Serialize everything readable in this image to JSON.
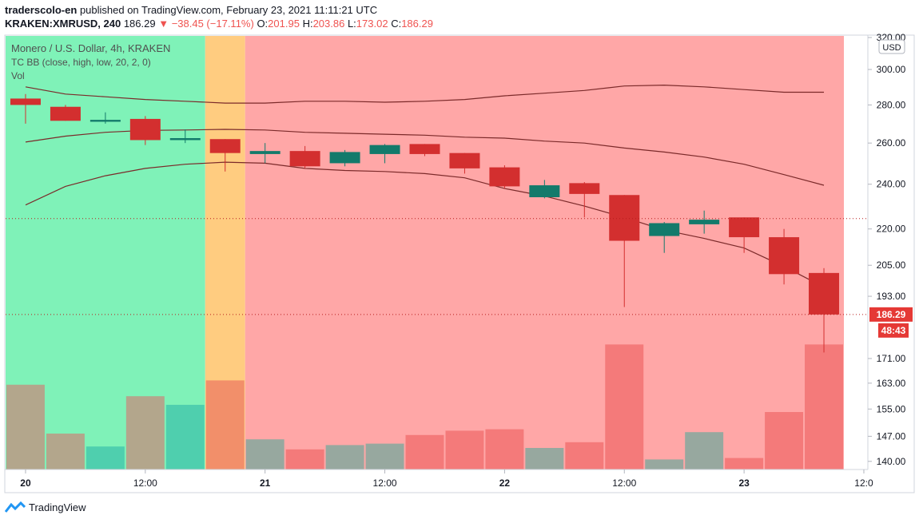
{
  "header": {
    "publisher": "traderscolo-en",
    "published_text": "published on TradingView.com, February 23, 2021 11:11:21 UTC",
    "symbol": "KRAKEN:XMRUSD, 240",
    "last_price": "186.29",
    "change": "▼ −38.45 (−17.11%)",
    "o_label": "O:",
    "o_value": "201.95",
    "h_label": "H:",
    "h_value": "203.86",
    "l_label": "L:",
    "l_value": "173.02",
    "c_label": "C:",
    "c_value": "186.29"
  },
  "legend": {
    "title": "Monero / U.S. Dollar, 4h, KRAKEN",
    "indicator": "TC BB (close, high, low, 20, 2, 0)",
    "volume": "Vol"
  },
  "footer": {
    "brand": "TradingView",
    "logo_icon": "tradingview-logo-icon"
  },
  "colors": {
    "up": "#26a69a",
    "down": "#ef5350",
    "candle_up": "#137a6b",
    "candle_down": "#d32f2f",
    "zone_green": "#7ff2b8",
    "zone_orange": "#ffcc80",
    "zone_red": "#ffa7a7",
    "bb_line": "#7b2a2a",
    "price_line": "#b71c1c"
  },
  "chart_data": {
    "type": "candlestick",
    "title": "Monero / U.S. Dollar, 4h, KRAKEN",
    "currency": "USD",
    "price_scale": "log",
    "y_ticks": [
      "320.00",
      "300.00",
      "280.00",
      "260.00",
      "240.00",
      "220.00",
      "205.00",
      "193.00",
      "186.29",
      "171.00",
      "163.00",
      "155.00",
      "147.00",
      "140.00"
    ],
    "x_tick_labels": [
      "20",
      "12:00",
      "21",
      "12:00",
      "22",
      "12:00",
      "23",
      "12:0"
    ],
    "last_price_label": "186.29",
    "countdown_label": "48:43",
    "zones": [
      {
        "name": "green",
        "start": 0,
        "end": 4
      },
      {
        "name": "orange",
        "start": 5,
        "end": 5
      },
      {
        "name": "red",
        "start": 6,
        "end": 20
      }
    ],
    "candles": [
      {
        "o": 283.5,
        "h": 286,
        "l": 270,
        "c": 280
      },
      {
        "o": 279,
        "h": 280,
        "l": 271.5,
        "c": 271.5
      },
      {
        "o": 271,
        "h": 276,
        "l": 270,
        "c": 272
      },
      {
        "o": 272.5,
        "h": 274,
        "l": 259,
        "c": 261.5
      },
      {
        "o": 261.5,
        "h": 267,
        "l": 260,
        "c": 262.5
      },
      {
        "o": 262,
        "h": 262,
        "l": 246,
        "c": 255
      },
      {
        "o": 254.5,
        "h": 260,
        "l": 250,
        "c": 256
      },
      {
        "o": 256,
        "h": 258.5,
        "l": 247.5,
        "c": 248.5
      },
      {
        "o": 250,
        "h": 256.5,
        "l": 248.5,
        "c": 255.5
      },
      {
        "o": 254.5,
        "h": 259.5,
        "l": 250,
        "c": 259
      },
      {
        "o": 259.5,
        "h": 259.5,
        "l": 253.5,
        "c": 254.5
      },
      {
        "o": 255,
        "h": 255,
        "l": 245,
        "c": 247.5
      },
      {
        "o": 248,
        "h": 249,
        "l": 238,
        "c": 239
      },
      {
        "o": 234,
        "h": 242,
        "l": 233.5,
        "c": 239.5
      },
      {
        "o": 240.5,
        "h": 241,
        "l": 225,
        "c": 235.5
      },
      {
        "o": 235,
        "h": 235,
        "l": 189,
        "c": 215
      },
      {
        "o": 217,
        "h": 223,
        "l": 210,
        "c": 222.5
      },
      {
        "o": 222,
        "h": 228,
        "l": 218,
        "c": 224
      },
      {
        "o": 225,
        "h": 225,
        "l": 210,
        "c": 216.5
      },
      {
        "o": 216.5,
        "h": 220,
        "l": 197.5,
        "c": 201.5
      },
      {
        "o": 201.95,
        "h": 203.86,
        "l": 173.02,
        "c": 186.29
      }
    ],
    "volume": [
      59,
      25,
      16,
      51,
      45,
      62,
      21,
      14,
      17,
      18,
      24,
      27,
      28,
      15,
      19,
      87,
      7,
      26,
      8,
      40,
      87
    ],
    "volume_max": 100,
    "bollinger": {
      "upper": [
        290,
        286,
        284.5,
        283,
        282,
        281,
        281,
        282,
        282,
        281.5,
        282,
        283,
        285,
        286.5,
        288,
        290.5,
        291,
        290,
        288.5,
        287,
        287
      ],
      "basis": [
        260.5,
        263.5,
        265.5,
        266.5,
        266.7,
        267,
        266.7,
        265.5,
        265,
        264.5,
        264,
        263,
        262.5,
        261,
        260,
        257.5,
        255.5,
        253,
        249.5,
        244.5,
        239.5
      ],
      "lower": [
        230.5,
        239,
        244,
        247.5,
        249.5,
        250.5,
        250,
        247.5,
        246.5,
        246,
        245,
        243,
        238,
        234.5,
        230,
        225,
        219.5,
        216,
        212,
        204.5,
        196.5
      ]
    }
  }
}
